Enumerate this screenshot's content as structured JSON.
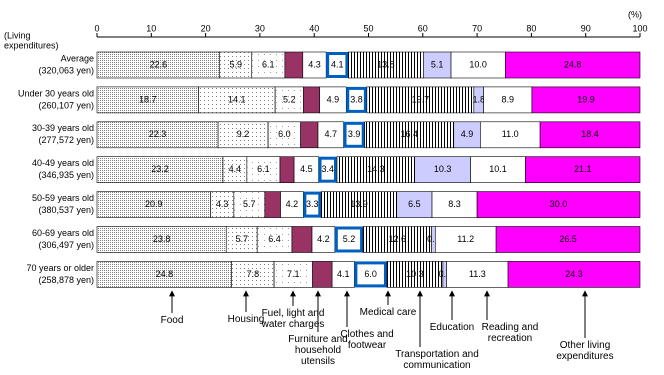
{
  "chart_data": {
    "type": "stacked-bar-horizontal",
    "x_label": "(%)",
    "y_axis_label": [
      "(Living",
      "expenditures)"
    ],
    "categories": [
      [
        "Average",
        "(320,063 yen)"
      ],
      [
        "Under 30 years old",
        "(260,107 yen)"
      ],
      [
        "30-39 years old",
        "(277,572 yen)"
      ],
      [
        "40-49 years old",
        "(346,935 yen)"
      ],
      [
        "50-59 years old",
        "(380,537 yen)"
      ],
      [
        "60-69 years old",
        "(306,497 yen)"
      ],
      [
        "70 years or older",
        "(258,878 yen)"
      ]
    ],
    "xlim": [
      0,
      100
    ],
    "xticks": [
      0,
      10,
      20,
      30,
      40,
      50,
      60,
      70,
      80,
      90,
      100
    ],
    "series": [
      {
        "name": "Food",
        "color": "#808080",
        "pattern": "dense-dots",
        "labels": true,
        "values": [
          22.6,
          18.7,
          22.3,
          23.2,
          20.9,
          23.8,
          24.8
        ]
      },
      {
        "name": "Housing",
        "color": "#808080",
        "pattern": "sparse-dots",
        "labels": true,
        "values": [
          5.9,
          14.1,
          9.2,
          4.4,
          4.3,
          5.7,
          7.8
        ]
      },
      {
        "name": "Fuel, light and water charges",
        "color": "#a0a0a0",
        "pattern": "light-dots",
        "labels": true,
        "values": [
          6.1,
          5.2,
          6.0,
          6.1,
          5.7,
          6.4,
          7.1
        ],
        "value_labels": [
          "6.1",
          "5.2",
          "6.0",
          "6.1",
          "5.7",
          "6.4",
          "7.1"
        ]
      },
      {
        "name": "Furniture and household utensils",
        "color": "#993366",
        "pattern": "solid",
        "labels": false,
        "values": [
          3.3,
          3.0,
          3.2,
          2.6,
          2.9,
          3.7,
          3.6
        ]
      },
      {
        "name": "Clothes and footwear",
        "color": "#ffffff",
        "pattern": "solid",
        "labels": true,
        "values": [
          4.3,
          4.9,
          4.7,
          4.5,
          4.2,
          4.2,
          4.1
        ]
      },
      {
        "name": "Medical care",
        "color": "#0060c0",
        "pattern": "outline",
        "labels": true,
        "values": [
          4.1,
          3.8,
          3.9,
          3.4,
          3.3,
          5.2,
          6.0
        ],
        "value_labels": [
          "4.1",
          "3.8",
          "3.9",
          "3.4",
          "3.3",
          "5.2",
          "6.0"
        ]
      },
      {
        "name": "Transportation and communication",
        "color": "#000000",
        "pattern": "vertical-lines",
        "labels": true,
        "values": [
          13.8,
          19.7,
          16.4,
          14.3,
          13.9,
          12.6,
          10.3
        ]
      },
      {
        "name": "Education",
        "color": "#ccccff",
        "pattern": "solid",
        "labels": true,
        "values": [
          5.1,
          1.8,
          4.9,
          10.3,
          6.5,
          0.7,
          0.7
        ]
      },
      {
        "name": "Reading and recreation",
        "color": "#ffffff",
        "pattern": "solid",
        "labels": true,
        "values": [
          10.0,
          8.9,
          11.0,
          10.1,
          8.3,
          11.2,
          11.3
        ],
        "value_labels": [
          "10.0",
          "8.9",
          "11.0",
          "10.1",
          "8.3",
          "11.2",
          "11.3"
        ]
      },
      {
        "name": "Other living expenditures",
        "color": "#ff00ff",
        "pattern": "solid",
        "labels": true,
        "values": [
          24.8,
          19.9,
          18.4,
          21.1,
          30.0,
          26.5,
          24.3
        ],
        "value_labels": [
          "24.8",
          "19.9",
          "18.4",
          "21.1",
          "30.0",
          "26.5",
          "24.3"
        ]
      }
    ]
  }
}
